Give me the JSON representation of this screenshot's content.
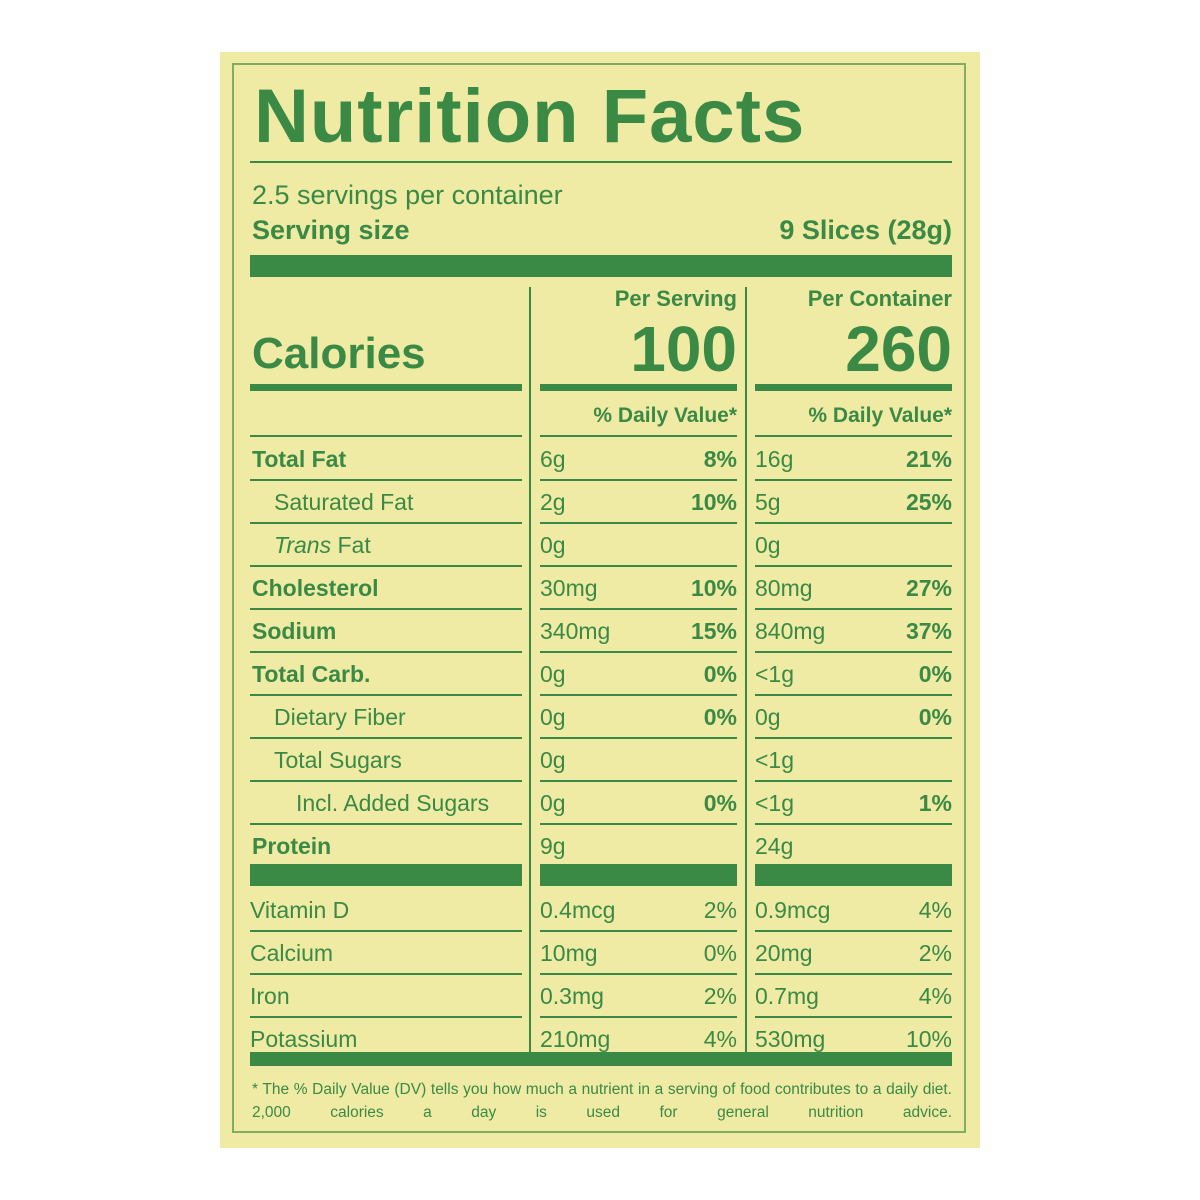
{
  "title": "Nutrition Facts",
  "servings": "2.5 servings per container",
  "serving_size": {
    "label": "Serving size",
    "value": "9 Slices (28g)"
  },
  "columns": [
    "Per Serving",
    "Per Container"
  ],
  "calories": {
    "label": "Calories",
    "values": [
      "100",
      "260"
    ]
  },
  "dv_header": "% Daily Value*",
  "nutrients": [
    {
      "indent": 0,
      "label": "Total Fat",
      "serving": [
        "6g",
        "8%"
      ],
      "container": [
        "16g",
        "21%"
      ]
    },
    {
      "indent": 1,
      "label": "Saturated Fat",
      "serving": [
        "2g",
        "10%"
      ],
      "container": [
        "5g",
        "25%"
      ]
    },
    {
      "indent": 1,
      "italic": "Trans",
      "label": "Fat",
      "serving": [
        "0g"
      ],
      "container": [
        "0g"
      ]
    },
    {
      "indent": 0,
      "label": "Cholesterol",
      "serving": [
        "30mg",
        "10%"
      ],
      "container": [
        "80mg",
        "27%"
      ]
    },
    {
      "indent": 0,
      "label": "Sodium",
      "serving": [
        "340mg",
        "15%"
      ],
      "container": [
        "840mg",
        "37%"
      ]
    },
    {
      "indent": 0,
      "label": "Total Carb.",
      "serving": [
        "0g",
        "0%"
      ],
      "container": [
        "<1g",
        "0%"
      ]
    },
    {
      "indent": 1,
      "label": "Dietary Fiber",
      "serving": [
        "0g",
        "0%"
      ],
      "container": [
        "0g",
        "0%"
      ]
    },
    {
      "indent": 1,
      "label": "Total Sugars",
      "serving": [
        "0g"
      ],
      "container": [
        "<1g"
      ]
    },
    {
      "indent": 2,
      "label": "Incl. Added Sugars",
      "serving": [
        "0g",
        "0%"
      ],
      "container": [
        "<1g",
        "1%"
      ]
    },
    {
      "indent": 0,
      "label": "Protein",
      "serving": [
        "9g"
      ],
      "container": [
        "24g"
      ]
    }
  ],
  "vitamins": [
    {
      "label": "Vitamin D",
      "serving": [
        "0.4mcg",
        "2%"
      ],
      "container": [
        "0.9mcg",
        "4%"
      ]
    },
    {
      "label": "Calcium",
      "serving": [
        "10mg",
        "0%"
      ],
      "container": [
        "20mg",
        "2%"
      ]
    },
    {
      "label": "Iron",
      "serving": [
        "0.3mg",
        "2%"
      ],
      "container": [
        "0.7mg",
        "4%"
      ]
    },
    {
      "label": "Potassium",
      "serving": [
        "210mg",
        "4%"
      ],
      "container": [
        "530mg",
        "10%"
      ]
    }
  ],
  "footnote": "* The % Daily Value (DV) tells you how much a nutrient in a serving of food contributes to a daily diet. 2,000 calories a day is used for general nutrition advice."
}
